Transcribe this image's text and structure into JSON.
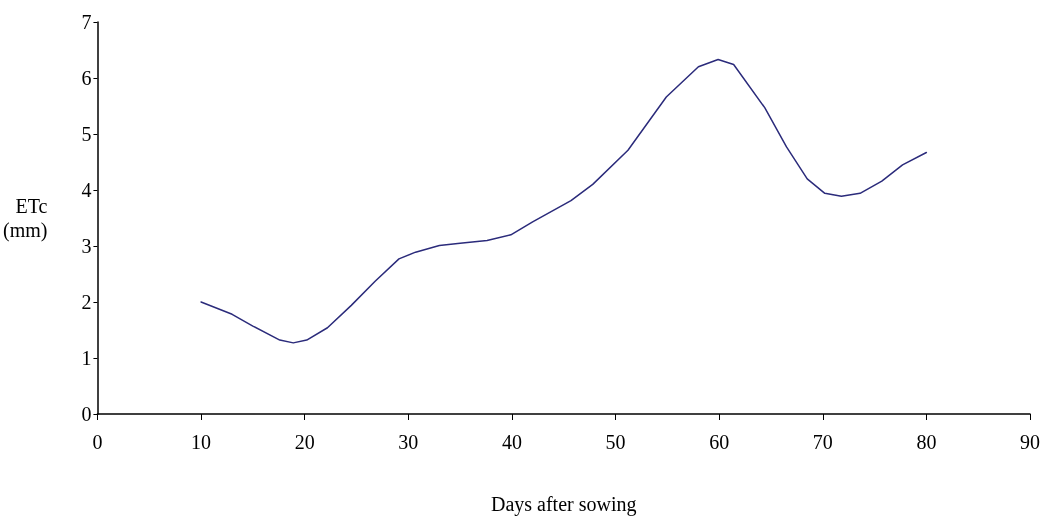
{
  "chart_data": {
    "type": "line",
    "xlabel": "Days after sowing",
    "ylabel": "ETc (mm)",
    "x": [
      10,
      13,
      15,
      17.6,
      18.9,
      20.2,
      22.2,
      24.5,
      26.8,
      29.1,
      30.7,
      33,
      35,
      37.6,
      39.9,
      42,
      45.7,
      47.8,
      51.2,
      54.9,
      58,
      59.9,
      61.4,
      64.4,
      66.5,
      68.5,
      70.2,
      71.8,
      73.6,
      75.7,
      77.7,
      80
    ],
    "series": [
      {
        "color": "#2b2b7b",
        "values": [
          2.0,
          1.78,
          1.57,
          1.32,
          1.27,
          1.32,
          1.54,
          1.94,
          2.37,
          2.77,
          2.89,
          3.01,
          3.05,
          3.1,
          3.2,
          3.43,
          3.81,
          4.1,
          4.71,
          5.66,
          6.2,
          6.33,
          6.24,
          5.47,
          4.77,
          4.2,
          3.94,
          3.89,
          3.94,
          4.16,
          4.45,
          4.67
        ]
      }
    ],
    "xlim": [
      0,
      90
    ],
    "xticks": [
      0,
      10,
      20,
      30,
      40,
      50,
      60,
      70,
      80,
      90
    ],
    "ylim": [
      0,
      7
    ],
    "yticks": [
      0,
      1,
      2,
      3,
      4,
      5,
      6,
      7
    ],
    "grid": false,
    "marker": "none",
    "line_style": "solid"
  }
}
